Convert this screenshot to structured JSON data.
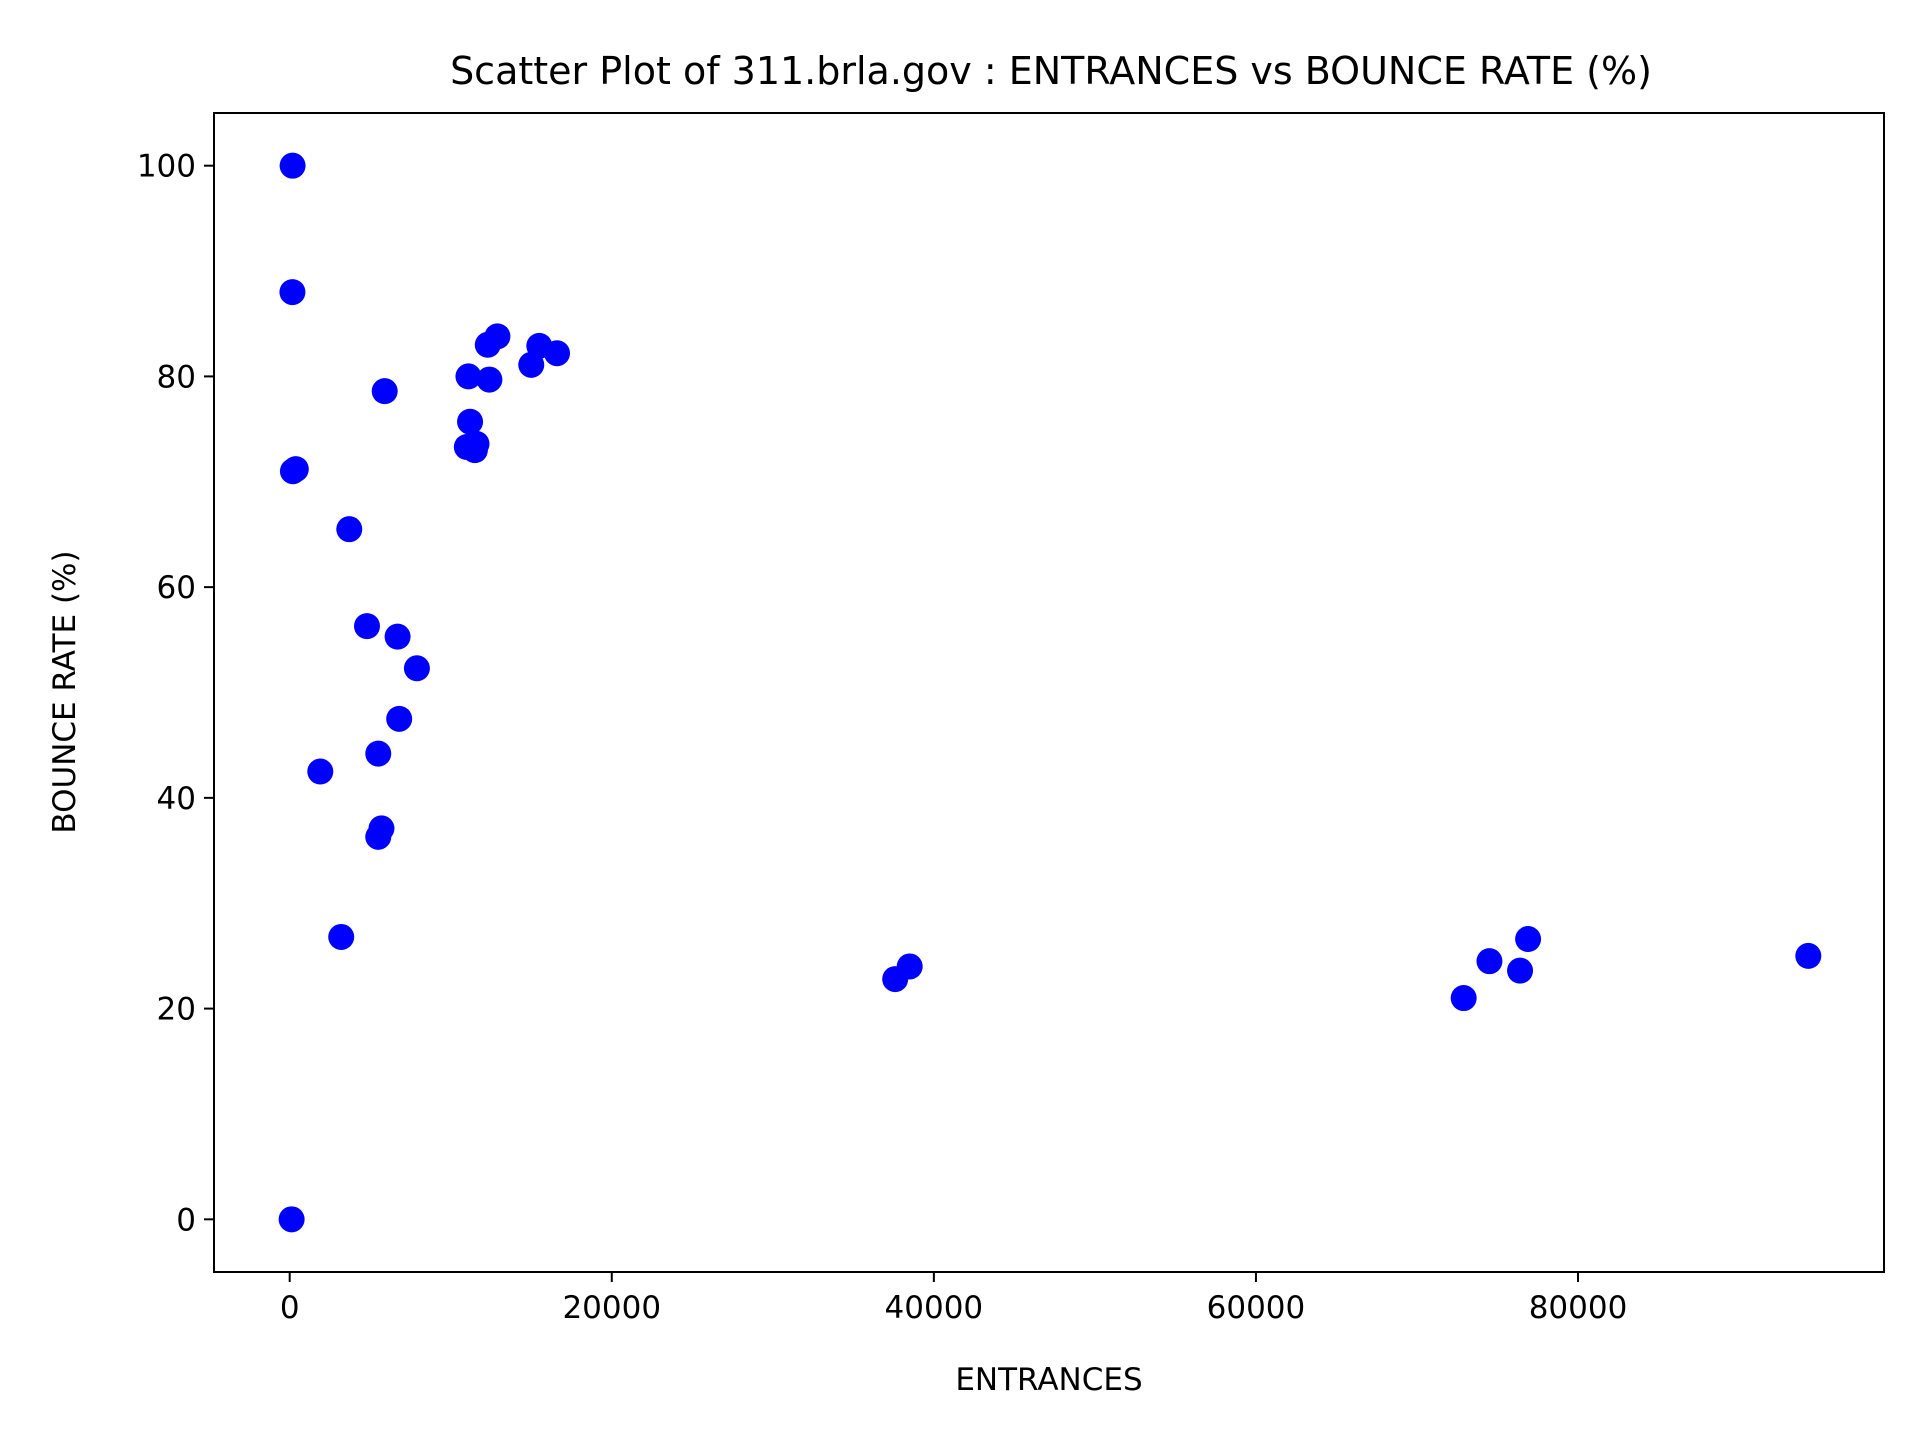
{
  "chart_data": {
    "type": "scatter",
    "title": "Scatter Plot of 311.brla.gov : ENTRANCES vs BOUNCE RATE (%)",
    "xlabel": "ENTRANCES",
    "ylabel": "BOUNCE RATE (%)",
    "xlim": [
      -4700,
      99000
    ],
    "ylim": [
      -5,
      105
    ],
    "xticks": [
      0,
      20000,
      40000,
      60000,
      80000
    ],
    "yticks": [
      0,
      20,
      40,
      60,
      80,
      100
    ],
    "grid": false,
    "marker_color": "#0000ff",
    "x": [
      120,
      180,
      170,
      380,
      200,
      5900,
      3700,
      4800,
      6700,
      7900,
      6800,
      5500,
      1900,
      5700,
      5500,
      3200,
      11100,
      11600,
      11500,
      11000,
      11200,
      12400,
      12300,
      12900,
      15000,
      15500,
      16600,
      37600,
      38500,
      72900,
      74500,
      76400,
      76900,
      94300
    ],
    "y": [
      0,
      100,
      88,
      71.2,
      71,
      78.6,
      65.5,
      56.3,
      55.3,
      52.3,
      47.5,
      44.2,
      42.5,
      37.1,
      36.3,
      26.8,
      80,
      73.6,
      73,
      73.3,
      75.7,
      79.7,
      83,
      83.8,
      81.1,
      82.9,
      82.2,
      22.8,
      24,
      21,
      24.5,
      23.6,
      26.6,
      25
    ]
  }
}
